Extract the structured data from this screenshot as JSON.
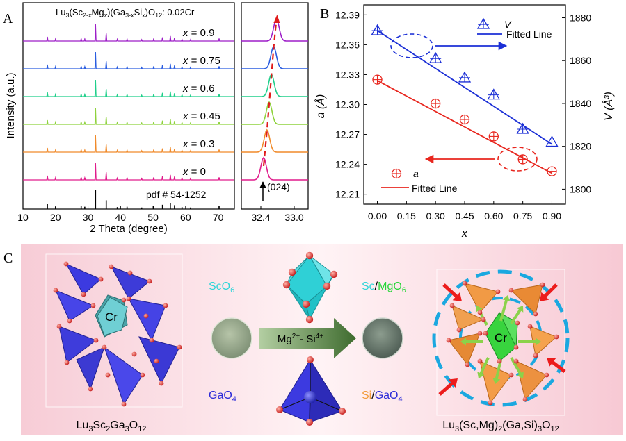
{
  "panel_a": {
    "letter": "A",
    "formula_parts": [
      "Lu",
      "3",
      "(Sc",
      "2-",
      "x",
      "Mg",
      "x",
      ")(Ga",
      "3-",
      "x",
      "Si",
      "x",
      ")O",
      "12",
      ": 0.02Cr"
    ],
    "ylabel": "Intensity (a.u.)",
    "xlabel": "2 Theta (degree)",
    "x_ticks": [
      "10",
      "20",
      "30",
      "40",
      "50",
      "60",
      "70"
    ],
    "inset_ticks": [
      "32.4",
      "33.0"
    ],
    "pdf_label": "pdf # 54-1252",
    "peak_label": "(024)",
    "pattern_labels": [
      "x = 0.9",
      "x = 0.75",
      "x = 0.6",
      "x = 0.45",
      "x = 0.3",
      "x = 0"
    ],
    "colors": [
      "#9d1ec8",
      "#2a5de0",
      "#1fcf8a",
      "#8ed23c",
      "#f08a2a",
      "#e01c8c"
    ],
    "inset_peak_positions": [
      32.68,
      32.63,
      32.59,
      32.55,
      32.51,
      32.45
    ]
  },
  "panel_b": {
    "letter": "B",
    "ylabel_left": "a (Å)",
    "ylabel_right": "V (Å³)",
    "xlabel": "x",
    "legend_v": "V",
    "legend_fit": "Fitted Line",
    "legend_a": "a",
    "legend_fit_a": "Fitted Line",
    "x_ticks": [
      "0.00",
      "0.15",
      "0.30",
      "0.45",
      "0.60",
      "0.75",
      "0.90"
    ],
    "y_left_ticks": [
      "12.21",
      "12.24",
      "12.27",
      "12.30",
      "12.33",
      "12.36",
      "12.39"
    ],
    "y_right_ticks": [
      "1800",
      "1820",
      "1840",
      "1860",
      "1880"
    ]
  },
  "chart_data": {
    "type": "scatter",
    "x": [
      0,
      0.3,
      0.45,
      0.6,
      0.75,
      0.9
    ],
    "xlim": [
      -0.07,
      0.97
    ],
    "ylim_left": [
      12.2,
      12.4
    ],
    "ylim_right": [
      1793,
      1886
    ],
    "series": [
      {
        "name": "a",
        "axis": "left",
        "color": "#e8261e",
        "values": [
          12.325,
          12.301,
          12.285,
          12.268,
          12.245,
          12.233
        ]
      },
      {
        "name": "V",
        "axis": "right",
        "color": "#1b2fd6",
        "values": [
          1874,
          1861,
          1852,
          1844,
          1828,
          1822
        ]
      }
    ],
    "fits": [
      {
        "axis": "left",
        "color": "#e8261e",
        "x": [
          0,
          0.9
        ],
        "y": [
          12.324,
          12.231
        ]
      },
      {
        "axis": "right",
        "color": "#1b2fd6",
        "x": [
          0,
          0.9
        ],
        "y": [
          1874,
          1821
        ]
      }
    ]
  },
  "panel_c": {
    "letter": "C",
    "sco6": "ScO",
    "sco6_sub": "6",
    "gao4": "GaO",
    "gao4_sub": "4",
    "sc": "Sc",
    "slash1": "/",
    "mgo6": "MgO",
    "mgo6_sub": "6",
    "si": "Si",
    "slash2": "/",
    "gao4b": "GaO",
    "gao4b_sub": "4",
    "arrow_label_parts": [
      "Mg",
      "2+",
      "- Si",
      "4+"
    ],
    "cr_left": "Cr",
    "cr_right": "Cr",
    "caption_left_parts": [
      "Lu",
      "3",
      "Sc",
      "2",
      "Ga",
      "3",
      "O",
      "12"
    ],
    "caption_right_parts": [
      "Lu",
      "3",
      "(Sc,Mg)",
      "2",
      "(Ga,Si)",
      "3",
      "O",
      "12"
    ]
  }
}
